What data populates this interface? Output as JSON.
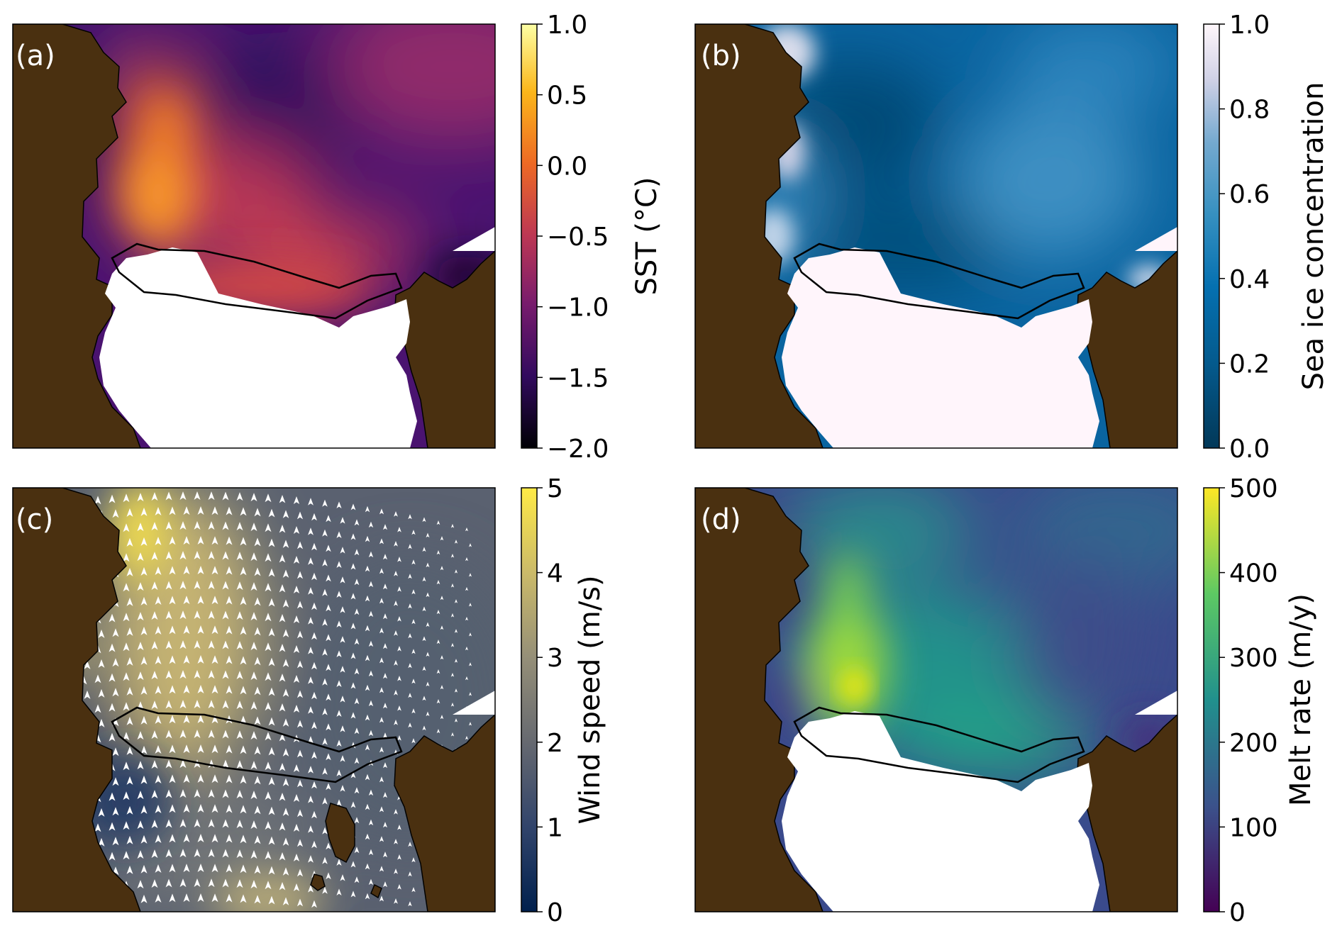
{
  "panels": [
    {
      "id": "a",
      "label": "(a)",
      "colormap": "inferno",
      "colorbar": {
        "label": "SST (°C)",
        "min": -2.0,
        "max": 1.0,
        "ticks": [
          "1.0",
          "0.5",
          "0.0",
          "−0.5",
          "−1.0",
          "−1.5",
          "−2.0"
        ],
        "tick_values": [
          1.0,
          0.5,
          0.0,
          -0.5,
          -1.0,
          -1.5,
          -2.0
        ]
      },
      "colors": {
        "stops": [
          "#000004",
          "#320a5e",
          "#781c6d",
          "#bc3754",
          "#ed6925",
          "#fbb61a",
          "#fcffa4"
        ]
      }
    },
    {
      "id": "b",
      "label": "(b)",
      "colormap": "PuBu_r",
      "colorbar": {
        "label": "Sea ice concentration",
        "min": 0.0,
        "max": 1.0,
        "ticks": [
          "1.0",
          "0.8",
          "0.6",
          "0.4",
          "0.2",
          "0.0"
        ],
        "tick_values": [
          1.0,
          0.8,
          0.6,
          0.4,
          0.2,
          0.0
        ]
      },
      "colors": {
        "stops": [
          "#023858",
          "#045a8d",
          "#0570b0",
          "#3690c0",
          "#74a9cf",
          "#d0d1e6",
          "#fff7fb"
        ]
      }
    },
    {
      "id": "c",
      "label": "(c)",
      "colormap": "cividis",
      "colorbar": {
        "label": "Wind speed (m/s)",
        "min": 0,
        "max": 5,
        "ticks": [
          "5",
          "4",
          "3",
          "2",
          "1",
          "0"
        ],
        "tick_values": [
          5,
          4,
          3,
          2,
          1,
          0
        ]
      },
      "colors": {
        "stops": [
          "#00204d",
          "#31446b",
          "#666970",
          "#958f78",
          "#cbba69",
          "#ffea46"
        ]
      }
    },
    {
      "id": "d",
      "label": "(d)",
      "colormap": "viridis",
      "colorbar": {
        "label": "Melt rate (m/y)",
        "min": 0,
        "max": 500,
        "ticks": [
          "500",
          "400",
          "300",
          "200",
          "100",
          "0"
        ],
        "tick_values": [
          500,
          400,
          300,
          200,
          100,
          0
        ]
      },
      "colors": {
        "stops": [
          "#440154",
          "#3b528b",
          "#21908d",
          "#5dc963",
          "#fde725"
        ]
      }
    }
  ],
  "map_colors": {
    "land": "#4a3010",
    "ice_shelf": "#ffffff",
    "outline": "#000000",
    "vectors": "#ffffff"
  }
}
